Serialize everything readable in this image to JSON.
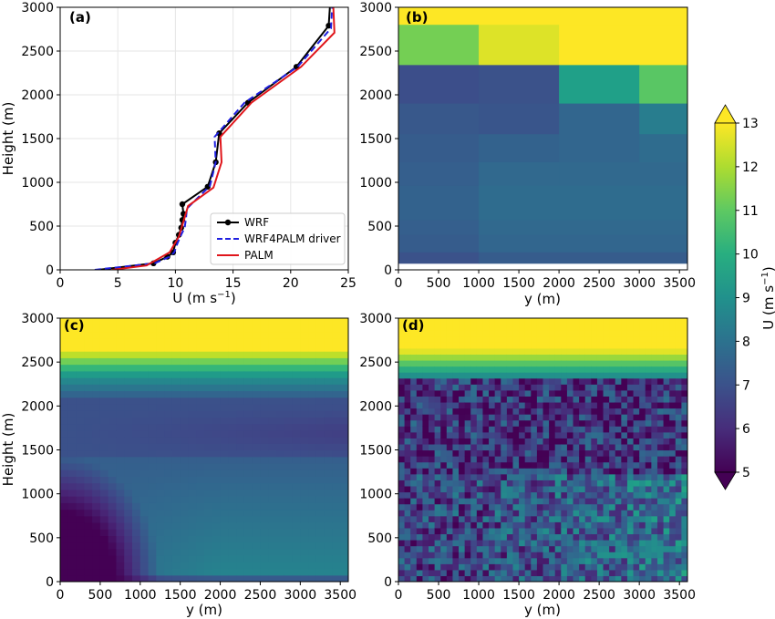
{
  "chart_data": [
    {
      "panel": "(a)",
      "type": "line",
      "xlabel": "U (m s",
      "xlabel_sup": "−1",
      "xlabel_end": ")",
      "ylabel": "Height (m)",
      "xlim": [
        0,
        25
      ],
      "ylim": [
        0,
        3000
      ],
      "xticks": [
        0,
        5,
        10,
        15,
        20,
        25
      ],
      "yticks": [
        0,
        500,
        1000,
        1500,
        2000,
        2500,
        3000
      ],
      "grid": true,
      "legend": "lower-right",
      "series": [
        {
          "name": "WRF",
          "color": "#000000",
          "style": "solid-markers",
          "x": [
            3.3,
            8.1,
            9.3,
            9.8,
            10.0,
            10.3,
            10.5,
            10.6,
            10.7,
            10.6,
            12.8,
            13.5,
            13.8,
            16.3,
            20.5,
            23.3,
            23.4
          ],
          "y": [
            0,
            75,
            150,
            200,
            310,
            400,
            480,
            570,
            640,
            750,
            950,
            1230,
            1560,
            1910,
            2320,
            2790,
            3000
          ]
        },
        {
          "name": "WRF4PALM driver",
          "color": "#1f1fe0",
          "style": "dashed",
          "x": [
            3.0,
            8.2,
            9.5,
            9.9,
            10.2,
            10.5,
            10.8,
            10.9,
            11.0,
            13.0,
            13.5,
            13.4,
            16.0,
            20.6,
            23.5,
            23.6
          ],
          "y": [
            0,
            75,
            150,
            200,
            310,
            400,
            480,
            570,
            700,
            960,
            1230,
            1520,
            1910,
            2320,
            2760,
            3000
          ]
        },
        {
          "name": "PALM",
          "color": "#e0161b",
          "style": "solid",
          "x": [
            4.5,
            7.5,
            9.5,
            10.3,
            11.1,
            13.3,
            14.0,
            13.9,
            16.6,
            20.9,
            23.8,
            23.7
          ],
          "y": [
            0,
            50,
            200,
            380,
            730,
            940,
            1230,
            1520,
            1910,
            2320,
            2710,
            3000
          ]
        }
      ]
    },
    {
      "panel": "(b)",
      "type": "heatmap",
      "xlabel": "y (m)",
      "xlim": [
        0,
        3600
      ],
      "ylim": [
        0,
        3000
      ],
      "xticks": [
        0,
        500,
        1000,
        1500,
        2000,
        2500,
        3000,
        3500
      ],
      "yticks": [
        0,
        500,
        1000,
        1500,
        2000,
        2500,
        3000
      ],
      "description_of_field": "coarse WRF blocks, 1000 m wide",
      "blocks": [
        {
          "x0": 0,
          "x1": 1000,
          "y0": 2800,
          "y1": 3000,
          "u": 13.0
        },
        {
          "x0": 1000,
          "x1": 3600,
          "y0": 2800,
          "y1": 3000,
          "u": 13.0
        },
        {
          "x0": 0,
          "x1": 1000,
          "y0": 2340,
          "y1": 2800,
          "u": 11.3
        },
        {
          "x0": 1000,
          "x1": 2000,
          "y0": 2340,
          "y1": 2800,
          "u": 12.6
        },
        {
          "x0": 2000,
          "x1": 3600,
          "y0": 2340,
          "y1": 2800,
          "u": 13.0
        },
        {
          "x0": 0,
          "x1": 1000,
          "y0": 1900,
          "y1": 2340,
          "u": 6.9
        },
        {
          "x0": 1000,
          "x1": 2000,
          "y0": 1900,
          "y1": 2340,
          "u": 7.0
        },
        {
          "x0": 2000,
          "x1": 3000,
          "y0": 1900,
          "y1": 2340,
          "u": 9.5
        },
        {
          "x0": 3000,
          "x1": 3600,
          "y0": 1900,
          "y1": 2340,
          "u": 10.9
        },
        {
          "x0": 0,
          "x1": 1000,
          "y0": 1550,
          "y1": 1900,
          "u": 7.2
        },
        {
          "x0": 1000,
          "x1": 2000,
          "y0": 1550,
          "y1": 1900,
          "u": 7.1
        },
        {
          "x0": 2000,
          "x1": 3000,
          "y0": 1550,
          "y1": 1900,
          "u": 7.6
        },
        {
          "x0": 3000,
          "x1": 3600,
          "y0": 1550,
          "y1": 1900,
          "u": 8.4
        },
        {
          "x0": 0,
          "x1": 1000,
          "y0": 1230,
          "y1": 1550,
          "u": 7.3
        },
        {
          "x0": 1000,
          "x1": 2000,
          "y0": 1230,
          "y1": 1550,
          "u": 7.5
        },
        {
          "x0": 2000,
          "x1": 3000,
          "y0": 1230,
          "y1": 1550,
          "u": 7.6
        },
        {
          "x0": 3000,
          "x1": 3600,
          "y0": 1230,
          "y1": 1550,
          "u": 7.8
        },
        {
          "x0": 0,
          "x1": 1000,
          "y0": 960,
          "y1": 1230,
          "u": 7.4
        },
        {
          "x0": 1000,
          "x1": 2000,
          "y0": 960,
          "y1": 1230,
          "u": 7.7
        },
        {
          "x0": 2000,
          "x1": 3600,
          "y0": 960,
          "y1": 1230,
          "u": 7.7
        },
        {
          "x0": 0,
          "x1": 1000,
          "y0": 750,
          "y1": 960,
          "u": 7.5
        },
        {
          "x0": 1000,
          "x1": 3600,
          "y0": 750,
          "y1": 960,
          "u": 7.8
        },
        {
          "x0": 0,
          "x1": 1000,
          "y0": 570,
          "y1": 750,
          "u": 7.5
        },
        {
          "x0": 1000,
          "x1": 3600,
          "y0": 570,
          "y1": 750,
          "u": 7.8
        },
        {
          "x0": 0,
          "x1": 1000,
          "y0": 400,
          "y1": 570,
          "u": 7.4
        },
        {
          "x0": 1000,
          "x1": 3600,
          "y0": 400,
          "y1": 570,
          "u": 7.7
        },
        {
          "x0": 0,
          "x1": 1000,
          "y0": 200,
          "y1": 400,
          "u": 7.3
        },
        {
          "x0": 1000,
          "x1": 3600,
          "y0": 200,
          "y1": 400,
          "u": 7.6
        },
        {
          "x0": 0,
          "x1": 1000,
          "y0": 75,
          "y1": 200,
          "u": 7.0
        },
        {
          "x0": 1000,
          "x1": 3600,
          "y0": 75,
          "y1": 200,
          "u": 7.3
        }
      ]
    },
    {
      "panel": "(c)",
      "type": "heatmap",
      "xlabel": "y (m)",
      "ylabel": "Height (m)",
      "xlim": [
        0,
        3600
      ],
      "ylim": [
        0,
        3000
      ],
      "xticks": [
        0,
        500,
        1000,
        1500,
        2000,
        2500,
        3000,
        3500
      ],
      "yticks": [
        0,
        500,
        1000,
        1500,
        2000,
        2500,
        3000
      ],
      "description_of_field": "smooth interpolated field"
    },
    {
      "panel": "(d)",
      "type": "heatmap",
      "xlabel": "y (m)",
      "xlim": [
        0,
        3600
      ],
      "ylim": [
        0,
        3000
      ],
      "xticks": [
        0,
        500,
        1000,
        1500,
        2000,
        2500,
        3000,
        3500
      ],
      "yticks": [
        0,
        500,
        1000,
        1500,
        2000,
        2500,
        3000
      ],
      "description_of_field": "turbulent PALM field"
    }
  ],
  "colorbar": {
    "label": "U (m s",
    "label_sup": "−1",
    "label_end": ")",
    "min": 5,
    "max": 13,
    "ticks": [
      5,
      6,
      7,
      8,
      9,
      10,
      11,
      12,
      13
    ],
    "colormap": "viridis",
    "extend": "both"
  }
}
